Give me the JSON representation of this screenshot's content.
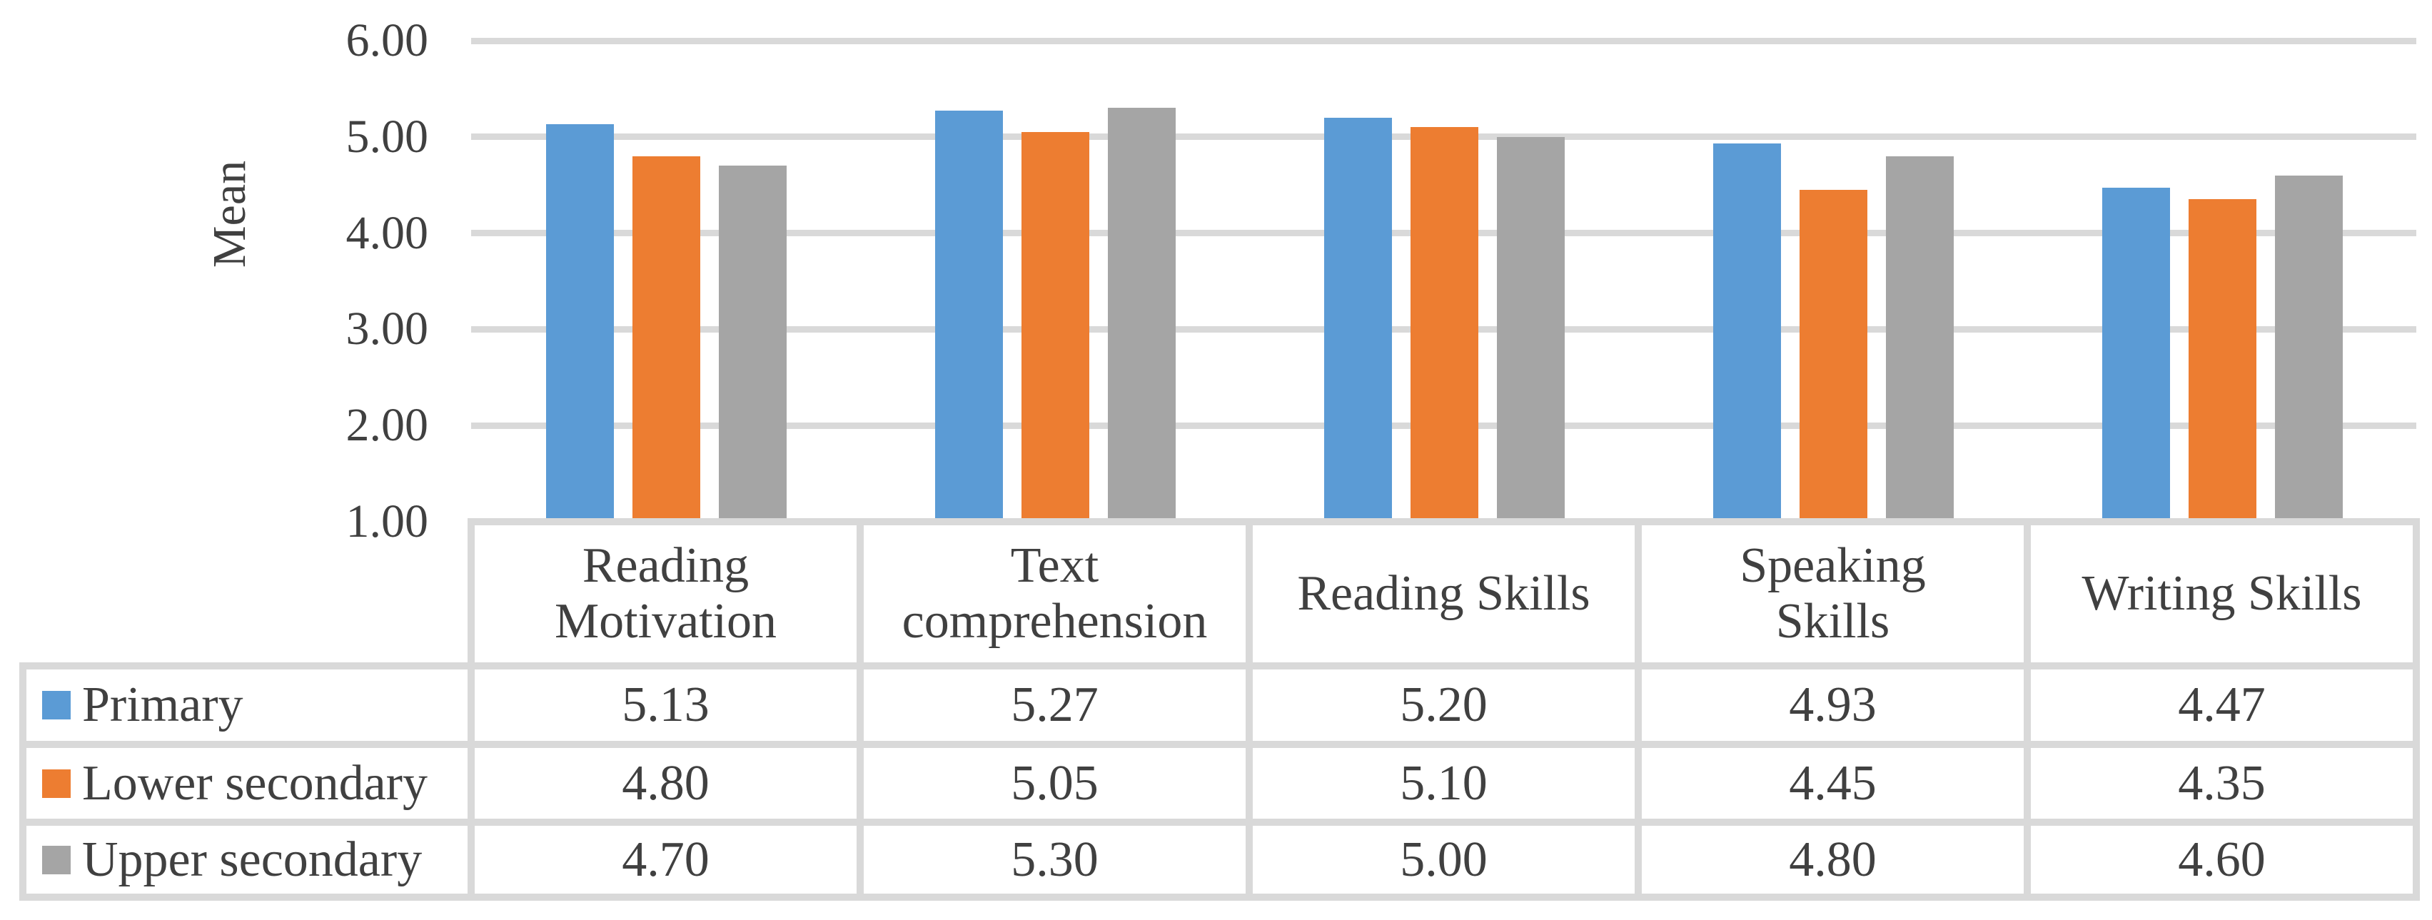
{
  "chart_data": {
    "type": "bar",
    "title": "",
    "xlabel": "",
    "ylabel": "Mean",
    "categories": [
      "Reading Motivation",
      "Text comprehension",
      "Reading Skills",
      "Speaking Skills",
      "Writing Skills"
    ],
    "category_display_lines": [
      [
        "Reading",
        "Motivation"
      ],
      [
        "Text",
        "comprehension"
      ],
      [
        "Reading Skills"
      ],
      [
        "Speaking",
        "Skills"
      ],
      [
        "Writing Skills"
      ]
    ],
    "series": [
      {
        "name": "Primary",
        "color": "#5B9BD5",
        "values": [
          5.13,
          5.27,
          5.2,
          4.93,
          4.47
        ]
      },
      {
        "name": "Lower secondary",
        "color": "#ED7D31",
        "values": [
          4.8,
          5.05,
          5.1,
          4.45,
          4.35
        ]
      },
      {
        "name": "Upper secondary",
        "color": "#A5A5A5",
        "values": [
          4.7,
          5.3,
          5.0,
          4.8,
          4.6
        ]
      }
    ],
    "y_axis": {
      "min": 1.0,
      "max": 6.0,
      "step": 1.0,
      "ticks": [
        "6.00",
        "5.00",
        "4.00",
        "3.00",
        "2.00",
        "1.00"
      ]
    },
    "grid": true,
    "legend_position": "data-table-left",
    "colors": {
      "gridline": "#D9D9D9",
      "table_border": "#D9D9D9",
      "text": "#404040",
      "background": "#FFFFFF"
    }
  }
}
